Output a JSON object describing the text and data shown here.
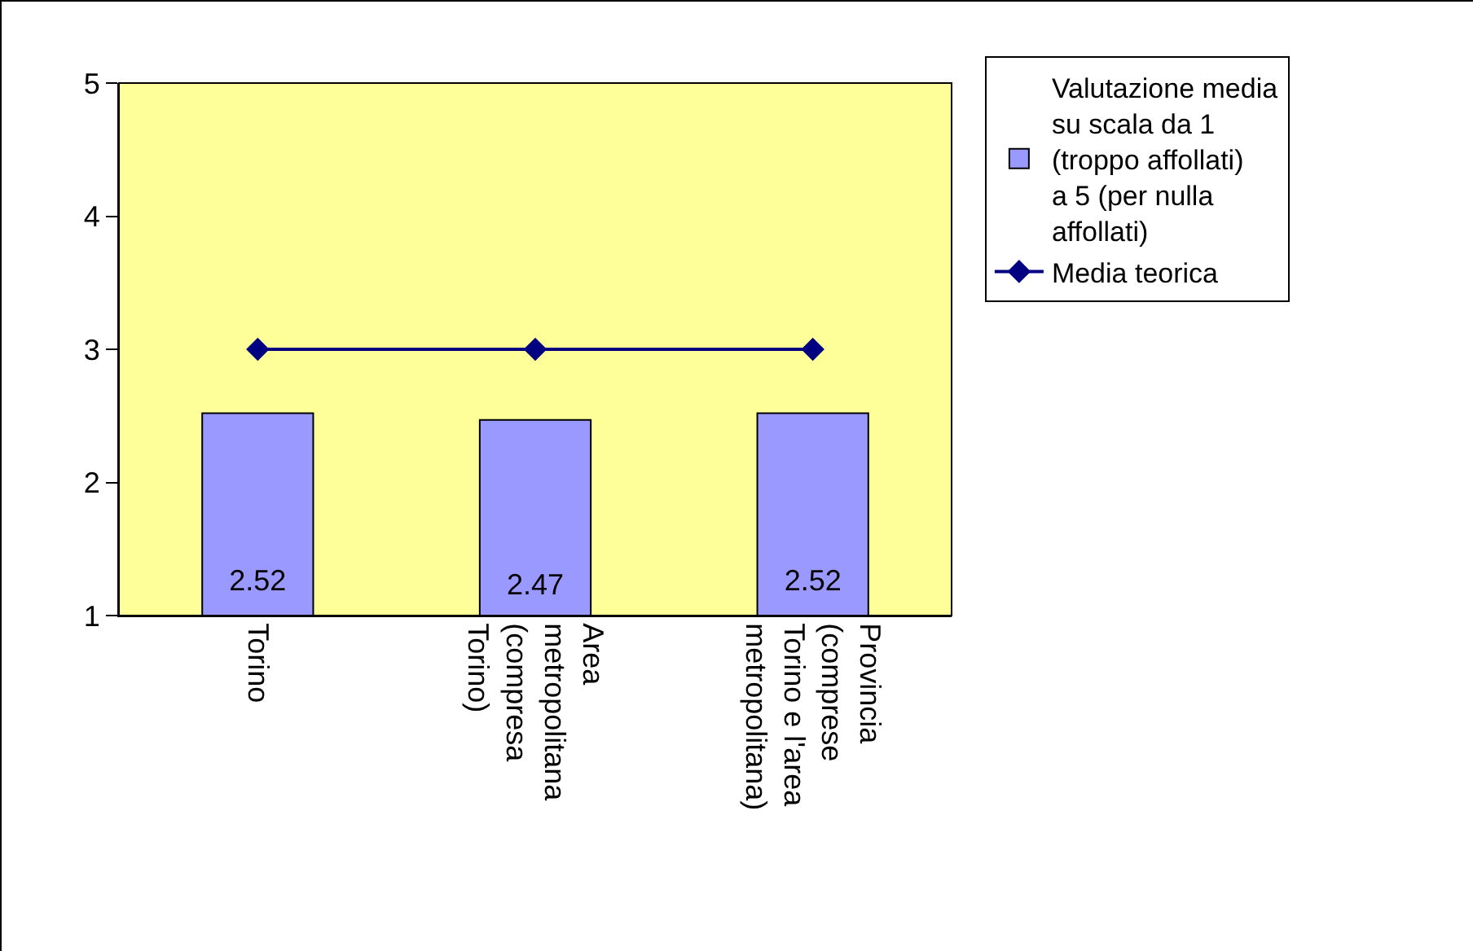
{
  "chart_data": {
    "type": "bar",
    "categories": [
      "Torino",
      "Area metropolitana (compresa Torino)",
      "Provincia (comprese Torino e l'area metropolitana)"
    ],
    "series": [
      {
        "name": "Valutazione media su scala da 1 (troppo affollati) a 5 (per nulla affollati)",
        "color": "#9999ff",
        "values": [
          2.52,
          2.47,
          2.52
        ],
        "value_labels": [
          "2.52",
          "2.47",
          "2.52"
        ]
      },
      {
        "name": "Media teorica",
        "type": "line",
        "color": "#000080",
        "values": [
          3,
          3,
          3
        ]
      }
    ],
    "ylim": [
      1,
      5
    ],
    "yticks": [
      1,
      2,
      3,
      4,
      5
    ],
    "grid": false,
    "legend": "right",
    "marker": "diamond",
    "line_style": "solid"
  }
}
